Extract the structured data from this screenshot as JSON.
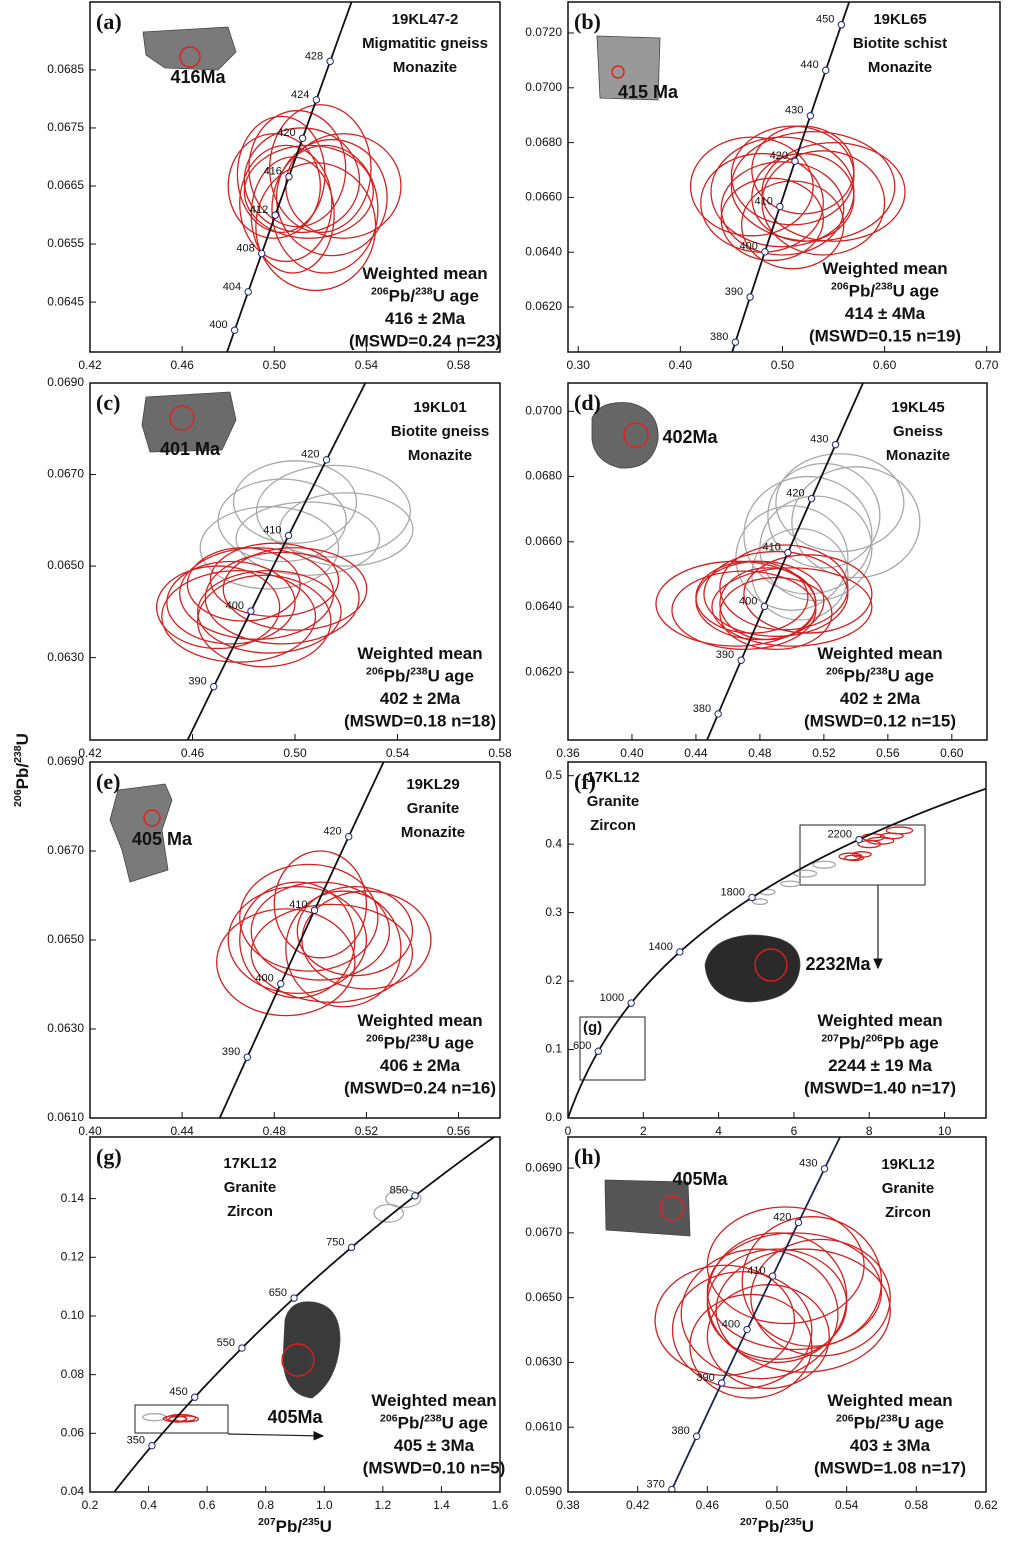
{
  "y_label": "206Pb/238U",
  "chart_data": [
    {
      "type": "concordia",
      "label": "(a)",
      "sample": "19KL47-2",
      "lithology": "Migmatitic gneiss",
      "mineral": "Monazite",
      "spot_age": "416Ma",
      "result": [
        "Weighted mean",
        "206Pb/238U age",
        "416 ± 2Ma",
        "(MSWD=0.24 n=23)"
      ],
      "xlim": [
        0.42,
        0.598
      ],
      "xticks": [
        0.42,
        0.46,
        {
          "value": 0.5,
          "label": "0.50"
        },
        0.54,
        0.58
      ],
      "ylim": [
        0.06364,
        0.06967
      ],
      "yticks": [
        0.0645,
        0.0655,
        0.0665,
        0.0675,
        0.0685
      ],
      "concordia_ages": [
        400,
        404,
        408,
        412,
        416,
        420,
        424,
        428
      ],
      "series": [
        {
          "color": "#d42020",
          "x": [
            0.505,
            0.512,
            0.52,
            0.508,
            0.515,
            0.525,
            0.5,
            0.518,
            0.51,
            0.53,
            0.503,
            0.522
          ],
          "values": [
            0.0662,
            0.0666,
            0.0668,
            0.066,
            0.0664,
            0.0663,
            0.0665,
            0.0658,
            0.0668,
            0.0665,
            0.0667,
            0.0661
          ],
          "x_err": [
            0.02,
            0.025,
            0.022,
            0.018,
            0.028,
            0.024,
            0.02,
            0.026,
            0.021,
            0.025,
            0.019,
            0.023
          ],
          "y_err": [
            0.001,
            0.0009,
            0.0011,
            0.001,
            0.0008,
            0.001,
            0.0009,
            0.0011,
            0.001,
            0.0009,
            0.001,
            0.0011
          ]
        }
      ]
    },
    {
      "type": "concordia",
      "label": "(b)",
      "sample": "19KL65",
      "lithology": "Biotite schist",
      "mineral": "Monazite",
      "spot_age": "415 Ma",
      "result": [
        "Weighted mean",
        "206Pb/238U age",
        "414 ± 4Ma",
        "(MSWD=0.15 n=19)"
      ],
      "xlim": [
        0.29,
        0.713
      ],
      "xticks": [
        {
          "value": 0.3,
          "label": "0.30"
        },
        {
          "value": 0.4,
          "label": "0.40"
        },
        {
          "value": 0.5,
          "label": "0.50"
        },
        {
          "value": 0.6,
          "label": "0.60"
        },
        {
          "value": 0.7,
          "label": "0.70"
        }
      ],
      "ylim": [
        0.06036,
        0.07313
      ],
      "yticks": [
        {
          "value": 0.062,
          "label": "0.0620"
        },
        {
          "value": 0.064,
          "label": "0.0640"
        },
        {
          "value": 0.066,
          "label": "0.0660"
        },
        {
          "value": 0.068,
          "label": "0.0680"
        },
        {
          "value": 0.07,
          "label": "0.0700"
        },
        {
          "value": 0.072,
          "label": "0.0720"
        }
      ],
      "concordia_ages": [
        380,
        390,
        400,
        410,
        420,
        430,
        440,
        450
      ],
      "series": [
        {
          "color": "#d42020",
          "x": [
            0.48,
            0.5,
            0.52,
            0.51,
            0.53,
            0.49,
            0.55,
            0.5,
            0.52,
            0.47,
            0.54,
            0.51
          ],
          "values": [
            0.0658,
            0.0662,
            0.066,
            0.0668,
            0.0664,
            0.0652,
            0.0662,
            0.0656,
            0.067,
            0.0664,
            0.0658,
            0.065
          ],
          "x_err": [
            0.06,
            0.07,
            0.05,
            0.06,
            0.08,
            0.05,
            0.07,
            0.06,
            0.05,
            0.06,
            0.06,
            0.05
          ],
          "y_err": [
            0.0018,
            0.002,
            0.0016,
            0.0018,
            0.002,
            0.0015,
            0.0018,
            0.0017,
            0.0016,
            0.0018,
            0.0019,
            0.0016
          ]
        }
      ]
    },
    {
      "type": "concordia",
      "label": "(c)",
      "sample": "19KL01",
      "lithology": "Biotite gneiss",
      "mineral": "Monazite",
      "spot_age": "401 Ma",
      "result": [
        "Weighted mean",
        "206Pb/238U age",
        "402 ± 2Ma",
        "(MSWD=0.18 n=18)"
      ],
      "xlim": [
        0.42,
        0.58
      ],
      "xticks": [
        0.42,
        0.46,
        {
          "value": 0.5,
          "label": "0.50"
        },
        0.54,
        0.58
      ],
      "ylim": [
        0.0612,
        0.069
      ],
      "yticks": [
        {
          "value": 0.063,
          "label": "0.0630"
        },
        {
          "value": 0.065,
          "label": "0.0650"
        },
        {
          "value": 0.067,
          "label": "0.0670"
        },
        {
          "value": 0.069,
          "label": "0.0690"
        }
      ],
      "concordia_ages": [
        390,
        400,
        410,
        420
      ],
      "series": [
        {
          "color": "#a8a8a8",
          "x": [
            0.495,
            0.505,
            0.515,
            0.5,
            0.52,
            0.49
          ],
          "values": [
            0.066,
            0.0656,
            0.0662,
            0.0664,
            0.0658,
            0.0654
          ],
          "x_err": [
            0.025,
            0.028,
            0.03,
            0.024,
            0.026,
            0.027
          ],
          "y_err": [
            0.0009,
            0.0008,
            0.001,
            0.0009,
            0.0008,
            0.0009
          ]
        },
        {
          "color": "#d42020",
          "x": [
            0.475,
            0.485,
            0.49,
            0.48,
            0.495,
            0.47,
            0.488,
            0.5,
            0.478,
            0.492
          ],
          "values": [
            0.0642,
            0.0644,
            0.064,
            0.0646,
            0.0643,
            0.0641,
            0.0638,
            0.0645,
            0.0639,
            0.0647
          ],
          "x_err": [
            0.025,
            0.03,
            0.028,
            0.022,
            0.03,
            0.024,
            0.026,
            0.028,
            0.03,
            0.025
          ],
          "y_err": [
            0.0009,
            0.001,
            0.0009,
            0.0008,
            0.001,
            0.0009,
            0.001,
            0.0009,
            0.001,
            0.0008
          ]
        }
      ]
    },
    {
      "type": "concordia",
      "label": "(d)",
      "sample": "19KL45",
      "lithology": "Gneiss",
      "mineral": "Monazite",
      "spot_age": "402Ma",
      "result": [
        "Weighted mean",
        "206Pb/238U age",
        "402 ± 2Ma",
        "(MSWD=0.12 n=15)"
      ],
      "xlim": [
        0.36,
        0.622
      ],
      "xticks": [
        0.36,
        {
          "value": 0.4,
          "label": "0.40"
        },
        0.44,
        0.48,
        0.52,
        0.56,
        {
          "value": 0.6,
          "label": "0.60"
        }
      ],
      "ylim": [
        0.05992,
        0.07087
      ],
      "yticks": [
        {
          "value": 0.062,
          "label": "0.0620"
        },
        {
          "value": 0.064,
          "label": "0.0640"
        },
        {
          "value": 0.066,
          "label": "0.0660"
        },
        {
          "value": 0.068,
          "label": "0.0680"
        },
        {
          "value": 0.07,
          "label": "0.0700"
        }
      ],
      "concordia_ages": [
        380,
        390,
        400,
        410,
        420,
        430
      ],
      "series": [
        {
          "color": "#a8a8a8",
          "x": [
            0.5,
            0.51,
            0.52,
            0.53,
            0.505,
            0.515,
            0.54
          ],
          "values": [
            0.0655,
            0.0662,
            0.0668,
            0.0672,
            0.065,
            0.0658,
            0.0666
          ],
          "x_err": [
            0.035,
            0.04,
            0.035,
            0.04,
            0.03,
            0.035,
            0.04
          ],
          "y_err": [
            0.0016,
            0.0018,
            0.0016,
            0.0015,
            0.0014,
            0.0016,
            0.0017
          ]
        },
        {
          "color": "#d42020",
          "x": [
            0.48,
            0.49,
            0.5,
            0.475,
            0.495,
            0.47,
            0.485,
            0.51,
            0.465,
            0.49
          ],
          "values": [
            0.0642,
            0.0644,
            0.064,
            0.0643,
            0.0646,
            0.0639,
            0.0641,
            0.0644,
            0.0641,
            0.0638
          ],
          "x_err": [
            0.04,
            0.045,
            0.05,
            0.035,
            0.04,
            0.045,
            0.03,
            0.04,
            0.05,
            0.035
          ],
          "y_err": [
            0.0012,
            0.0013,
            0.0012,
            0.0011,
            0.0013,
            0.0012,
            0.0011,
            0.0012,
            0.0013,
            0.0011
          ]
        }
      ]
    },
    {
      "type": "concordia",
      "label": "(e)",
      "sample": "19KL29",
      "lithology": "Granite",
      "mineral": "Monazite",
      "spot_age": "405 Ma",
      "result": [
        "Weighted mean",
        "206Pb/238U age",
        "406 ± 2Ma",
        "(MSWD=0.24 n=16)"
      ],
      "xlim": [
        0.4,
        0.578
      ],
      "xticks": [
        {
          "value": 0.4,
          "label": "0.40"
        },
        0.44,
        0.48,
        0.52,
        0.56
      ],
      "ylim": [
        0.061,
        0.069
      ],
      "yticks": [
        {
          "value": 0.061,
          "label": "0.0610"
        },
        {
          "value": 0.063,
          "label": "0.0630"
        },
        {
          "value": 0.065,
          "label": "0.0650"
        },
        {
          "value": 0.067,
          "label": "0.0670"
        },
        {
          "value": 0.069,
          "label": "0.0690"
        }
      ],
      "concordia_ages": [
        390,
        400,
        410,
        420
      ],
      "series": [
        {
          "color": "#d42020",
          "x": [
            0.49,
            0.5,
            0.51,
            0.495,
            0.505,
            0.485,
            0.515,
            0.5,
            0.49,
            0.52
          ],
          "values": [
            0.065,
            0.0652,
            0.0648,
            0.0655,
            0.0647,
            0.0645,
            0.0652,
            0.0658,
            0.065,
            0.065
          ],
          "x_err": [
            0.03,
            0.03,
            0.025,
            0.03,
            0.035,
            0.03,
            0.025,
            0.02,
            0.025,
            0.028
          ],
          "y_err": [
            0.0012,
            0.0011,
            0.0013,
            0.0012,
            0.0011,
            0.0012,
            0.001,
            0.0012,
            0.0013,
            0.0011
          ]
        }
      ]
    },
    {
      "type": "concordia",
      "label": "(f)",
      "sample": "17KL12",
      "lithology": "Granite",
      "mineral": "Zircon",
      "spot_age": "2232Ma",
      "result": [
        "Weighted mean",
        "207Pb/206Pb age",
        "2244 ± 19 Ma",
        "(MSWD=1.40 n=17)"
      ],
      "inset_label": "(g)",
      "xlim": [
        0,
        11.1
      ],
      "xticks": [
        0,
        2,
        4,
        6,
        8,
        10
      ],
      "ylim": [
        0,
        0.52
      ],
      "yticks": [
        {
          "value": 0,
          "label": "0.0"
        },
        0.1,
        0.2,
        0.3,
        0.4,
        0.5
      ],
      "concordia_ages": [
        600,
        1000,
        1400,
        1800,
        2200
      ],
      "series": [
        {
          "color": "#a8a8a8",
          "x": [
            5.3,
            5.9,
            6.3,
            6.8,
            5.1
          ],
          "values": [
            0.33,
            0.342,
            0.357,
            0.37,
            0.316
          ],
          "x_err": [
            0.2,
            0.25,
            0.3,
            0.3,
            0.2
          ],
          "y_err": [
            0.004,
            0.004,
            0.005,
            0.005,
            0.004
          ]
        },
        {
          "color": "#d42020",
          "x": [
            7.5,
            7.8,
            8,
            8.3,
            8.6,
            7.6,
            8.1,
            8.8
          ],
          "values": [
            0.382,
            0.385,
            0.4,
            0.405,
            0.412,
            0.38,
            0.41,
            0.42
          ],
          "x_err": [
            0.3,
            0.25,
            0.3,
            0.35,
            0.3,
            0.25,
            0.3,
            0.35
          ],
          "y_err": [
            0.005,
            0.004,
            0.005,
            0.005,
            0.004,
            0.004,
            0.005,
            0.005
          ]
        }
      ]
    },
    {
      "type": "concordia",
      "label": "(g)",
      "sample": "17KL12",
      "lithology": "Granite",
      "mineral": "Zircon",
      "spot_age": "405Ma",
      "result": [
        "Weighted mean",
        "206Pb/238U age",
        "405 ± 3Ma",
        "(MSWD=0.10 n=5)"
      ],
      "x_label": "207Pb/235U",
      "xlim": [
        0.2,
        1.6
      ],
      "xticks": [
        0.2,
        0.4,
        0.6,
        0.8,
        {
          "value": 1,
          "label": "1.0"
        },
        1.2,
        1.4,
        1.6
      ],
      "ylim": [
        0.04,
        0.161
      ],
      "yticks": [
        0.04,
        0.06,
        0.08,
        {
          "value": 0.1,
          "label": "0.10"
        },
        0.12,
        0.14
      ],
      "concordia_ages": [
        350,
        450,
        550,
        650,
        750,
        850
      ],
      "series": [
        {
          "color": "#a8a8a8",
          "x": [
            0.42,
            1.22,
            1.27
          ],
          "values": [
            0.0655,
            0.135,
            0.14
          ],
          "x_err": [
            0.04,
            0.05,
            0.06
          ],
          "y_err": [
            0.0012,
            0.003,
            0.003
          ]
        },
        {
          "color": "#d42020",
          "x": [
            0.49,
            0.51,
            0.53,
            0.5
          ],
          "values": [
            0.065,
            0.0652,
            0.0649,
            0.0648
          ],
          "x_err": [
            0.04,
            0.05,
            0.04,
            0.03
          ],
          "y_err": [
            0.001,
            0.0012,
            0.001,
            0.001
          ]
        }
      ]
    },
    {
      "type": "concordia",
      "label": "(h)",
      "sample": "19KL12",
      "lithology": "Granite",
      "mineral": "Zircon",
      "spot_age": "405Ma",
      "result": [
        "Weighted mean",
        "206Pb/238U age",
        "403 ± 3Ma",
        "(MSWD=1.08 n=17)"
      ],
      "x_label": "207Pb/235U",
      "xlim": [
        0.38,
        0.62
      ],
      "xticks": [
        0.38,
        0.42,
        0.46,
        {
          "value": 0.5,
          "label": "0.50"
        },
        0.54,
        0.58,
        0.62
      ],
      "ylim": [
        0.059,
        0.06996
      ],
      "yticks": [
        {
          "value": 0.059,
          "label": "0.0590"
        },
        {
          "value": 0.061,
          "label": "0.0610"
        },
        {
          "value": 0.063,
          "label": "0.0630"
        },
        {
          "value": 0.065,
          "label": "0.0650"
        },
        {
          "value": 0.067,
          "label": "0.0670"
        },
        {
          "value": 0.069,
          "label": "0.0690"
        }
      ],
      "concordia_ages": [
        370,
        380,
        390,
        400,
        410,
        420,
        430
      ],
      "series": [
        {
          "color": "#d42020",
          "x": [
            0.48,
            0.49,
            0.5,
            0.51,
            0.52,
            0.495,
            0.505,
            0.47,
            0.515,
            0.5,
            0.485,
            0.525
          ],
          "values": [
            0.064,
            0.0645,
            0.0648,
            0.0652,
            0.0655,
            0.0638,
            0.066,
            0.0643,
            0.0646,
            0.065,
            0.0635,
            0.065
          ],
          "x_err": [
            0.04,
            0.045,
            0.04,
            0.05,
            0.04,
            0.035,
            0.045,
            0.04,
            0.05,
            0.04,
            0.035,
            0.04
          ],
          "y_err": [
            0.0018,
            0.002,
            0.0017,
            0.0018,
            0.002,
            0.0016,
            0.0018,
            0.0017,
            0.0019,
            0.002,
            0.0016,
            0.0018
          ]
        }
      ]
    }
  ]
}
